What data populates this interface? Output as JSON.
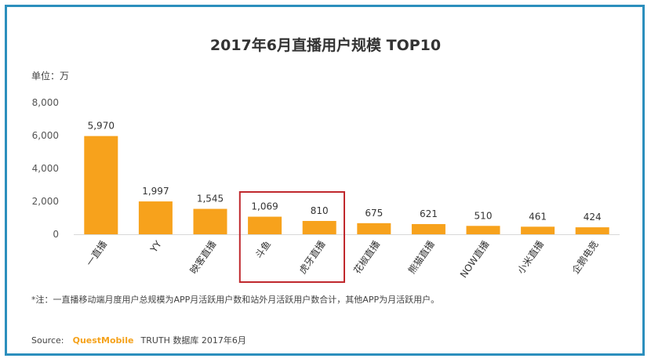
{
  "chart_data": {
    "type": "bar",
    "title": "2017年6月直播用户规模 TOP10",
    "unit_label": "单位：万",
    "categories": [
      "一直播",
      "YY",
      "映客直播",
      "斗鱼",
      "虎牙直播",
      "花椒直播",
      "熊猫直播",
      "NOW直播",
      "小米直播",
      "企鹅电竞"
    ],
    "values": [
      5970,
      1997,
      1545,
      1069,
      810,
      675,
      621,
      510,
      461,
      424
    ],
    "value_labels": [
      "5,970",
      "1,997",
      "1,545",
      "1,069",
      "810",
      "675",
      "621",
      "510",
      "461",
      "424"
    ],
    "yticks": [
      0,
      2000,
      4000,
      6000,
      8000
    ],
    "ytick_labels": [
      "0",
      "2,000",
      "4,000",
      "6,000",
      "8,000"
    ],
    "ylim": [
      0,
      8000
    ],
    "highlighted": [
      "斗鱼",
      "虎牙直播"
    ],
    "grid": false,
    "xlabel": "",
    "ylabel": ""
  },
  "colors": {
    "bar": "#f7a21c",
    "highlight_box": "#c0282d",
    "frame": "#2c8fbd",
    "brand": "#f5a21b"
  },
  "footnote": "*注：一直播移动端月度用户总规模为APP月活跃用户数和站外月活跃用户数合计，其他APP为月活跃用户。",
  "source": {
    "label": "Source:",
    "brand": "QuestMobile",
    "text": "TRUTH 数据库 2017年6月"
  }
}
